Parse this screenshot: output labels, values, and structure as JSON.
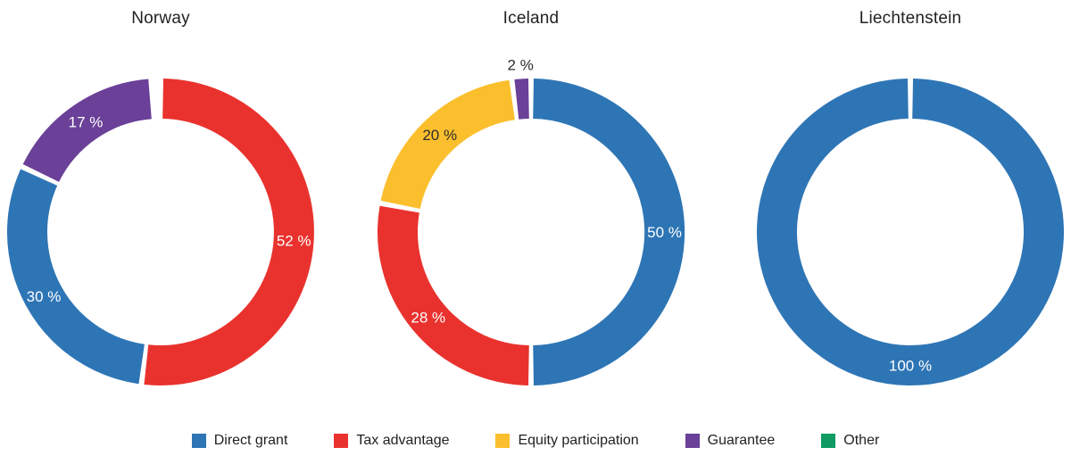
{
  "page": {
    "background_color": "#ffffff",
    "text_color": "#231f20"
  },
  "chart_data": [
    {
      "type": "pie",
      "subtype": "donut",
      "title": "Norway",
      "unit": "%",
      "direction": "clockwise",
      "start_angle_deg": 0,
      "slices": [
        {
          "category": "Tax advantage",
          "value": 52,
          "label": "52 %",
          "color": "#E9322E",
          "label_color": "#FFFFFF",
          "label_placement": "inside"
        },
        {
          "category": "Direct grant",
          "value": 30,
          "label": "30 %",
          "color": "#2E75B5",
          "label_color": "#FFFFFF",
          "label_placement": "inside"
        },
        {
          "category": "Guarantee",
          "value": 17,
          "label": "17 %",
          "color": "#6A4098",
          "label_color": "#FFFFFF",
          "label_placement": "inside"
        }
      ]
    },
    {
      "type": "pie",
      "subtype": "donut",
      "title": "Iceland",
      "unit": "%",
      "direction": "clockwise",
      "start_angle_deg": 0,
      "slices": [
        {
          "category": "Direct grant",
          "value": 50,
          "label": "50 %",
          "color": "#2E75B5",
          "label_color": "#FFFFFF",
          "label_placement": "inside"
        },
        {
          "category": "Tax advantage",
          "value": 28,
          "label": "28 %",
          "color": "#E9322E",
          "label_color": "#FFFFFF",
          "label_placement": "inside"
        },
        {
          "category": "Equity participation",
          "value": 20,
          "label": "20 %",
          "color": "#FBBF2D",
          "label_color": "#2E2D2C",
          "label_placement": "inside"
        },
        {
          "category": "Guarantee",
          "value": 2,
          "label": "2 %",
          "color": "#6A4098",
          "label_color": "#2E2D2C",
          "label_placement": "outside"
        }
      ]
    },
    {
      "type": "pie",
      "subtype": "donut",
      "title": "Liechtenstein",
      "unit": "%",
      "direction": "clockwise",
      "start_angle_deg": 0,
      "slices": [
        {
          "category": "Direct grant",
          "value": 100,
          "label": "100 %",
          "color": "#2E75B5",
          "label_color": "#FFFFFF",
          "label_placement": "inside"
        }
      ]
    }
  ],
  "legend": {
    "items": [
      {
        "label": "Direct grant",
        "color": "#2E75B5"
      },
      {
        "label": "Tax advantage",
        "color": "#E9322E"
      },
      {
        "label": "Equity participation",
        "color": "#FBBF2D"
      },
      {
        "label": "Guarantee",
        "color": "#6A4098"
      },
      {
        "label": "Other",
        "color": "#0F9B62"
      }
    ]
  }
}
